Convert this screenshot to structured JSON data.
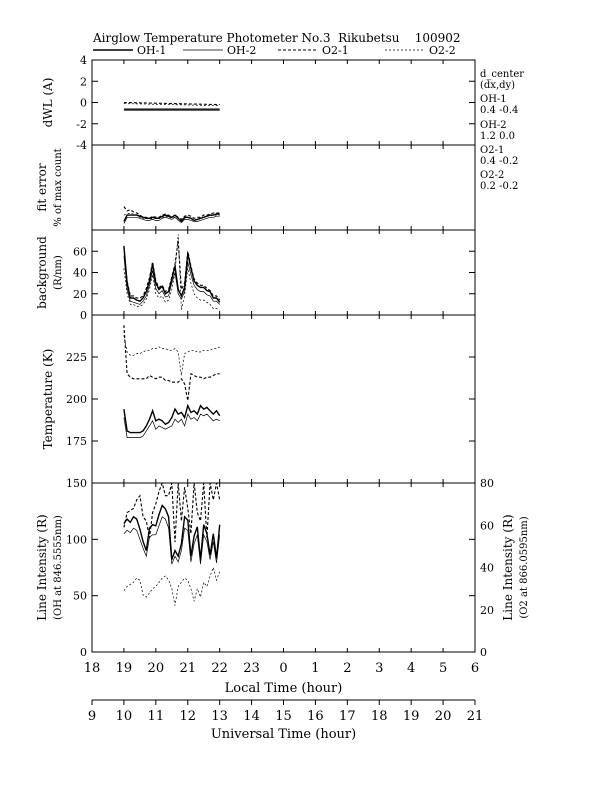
{
  "title": {
    "text": "Airglow Temperature Photometer No.3  Rikubetsu    100902"
  },
  "legend": [
    {
      "name": "OH-1",
      "style": "solid-thick"
    },
    {
      "name": "OH-2",
      "style": "solid-thin"
    },
    {
      "name": "O2-1",
      "style": "dashed-thick"
    },
    {
      "name": "O2-2",
      "style": "dashed-thin"
    }
  ],
  "side_notes": [
    "d_center",
    "(dx,dy)",
    "OH-1",
    "0.4  -0.4",
    "OH-2",
    "1.2   0.0",
    "O2-1",
    "0.4   -0.2",
    "O2-2",
    "0.2   -0.2"
  ],
  "x_axes": {
    "local": {
      "label": "Local Time (hour)",
      "ticks": [
        "18",
        "19",
        "20",
        "21",
        "22",
        "23",
        "0",
        "1",
        "2",
        "3",
        "4",
        "5",
        "6"
      ],
      "range": [
        18,
        30
      ]
    },
    "universal": {
      "label": "Universal Time (hour)",
      "ticks": [
        "9",
        "10",
        "11",
        "12",
        "13",
        "14",
        "15",
        "16",
        "17",
        "18",
        "19",
        "20",
        "21"
      ],
      "range": [
        9,
        21
      ]
    }
  },
  "chart_data": [
    {
      "type": "line",
      "panel": "dWL",
      "ylabel": "dWL (A)",
      "ylim": [
        -4,
        4
      ],
      "yticks": [
        "4",
        "2",
        "0",
        "-2",
        "-4"
      ],
      "x": [
        19.0,
        22.0
      ],
      "series": [
        {
          "name": "OH-1",
          "values": [
            -0.7,
            -0.7
          ]
        },
        {
          "name": "OH-2",
          "values": [
            -0.6,
            -0.6
          ]
        },
        {
          "name": "O2-1",
          "values": [
            0.0,
            -0.2
          ]
        },
        {
          "name": "O2-2",
          "values": [
            -0.1,
            -0.3
          ]
        }
      ]
    },
    {
      "type": "line",
      "panel": "fit error",
      "ylabel": [
        "fit error",
        "% of max count"
      ],
      "ylim": [
        0,
        4
      ],
      "yticks": [],
      "x": [
        19.0,
        19.1,
        19.2,
        19.3,
        19.4,
        19.5,
        19.6,
        19.7,
        19.8,
        19.9,
        20.0,
        20.1,
        20.2,
        20.3,
        20.4,
        20.5,
        20.6,
        20.7,
        20.8,
        20.9,
        21.0,
        21.1,
        21.2,
        21.3,
        21.4,
        21.5,
        21.6,
        21.7,
        21.8,
        21.9,
        22.0
      ],
      "series": [
        {
          "name": "OH-1",
          "values": [
            0.4,
            0.7,
            0.7,
            0.7,
            0.7,
            0.65,
            0.6,
            0.55,
            0.55,
            0.6,
            0.55,
            0.55,
            0.65,
            0.7,
            0.65,
            0.6,
            0.7,
            0.55,
            0.4,
            0.6,
            0.6,
            0.55,
            0.45,
            0.5,
            0.55,
            0.6,
            0.65,
            0.7,
            0.7,
            0.75,
            0.75
          ]
        },
        {
          "name": "OH-2",
          "values": [
            0.3,
            0.6,
            0.6,
            0.6,
            0.6,
            0.55,
            0.5,
            0.45,
            0.45,
            0.5,
            0.45,
            0.45,
            0.55,
            0.6,
            0.55,
            0.5,
            0.6,
            0.45,
            0.35,
            0.5,
            0.5,
            0.45,
            0.4,
            0.4,
            0.45,
            0.5,
            0.55,
            0.6,
            0.6,
            0.65,
            0.65
          ]
        },
        {
          "name": "O2-1",
          "values": [
            1.1,
            0.9,
            0.95,
            0.85,
            0.8,
            0.7,
            0.6,
            0.6,
            0.55,
            0.65,
            0.6,
            0.6,
            0.7,
            0.75,
            0.7,
            0.6,
            0.7,
            0.6,
            0.5,
            0.65,
            0.7,
            0.65,
            0.55,
            0.6,
            0.6,
            0.7,
            0.7,
            0.75,
            0.8,
            0.8,
            0.8
          ]
        },
        {
          "name": "O2-2",
          "values": [
            0.7,
            0.75,
            0.8,
            0.75,
            0.7,
            0.6,
            0.55,
            0.55,
            0.5,
            0.55,
            0.55,
            0.55,
            0.6,
            0.65,
            0.6,
            0.55,
            0.6,
            0.55,
            0.45,
            0.55,
            0.6,
            0.55,
            0.5,
            0.5,
            0.55,
            0.6,
            0.65,
            0.65,
            0.7,
            0.7,
            0.7
          ]
        }
      ]
    },
    {
      "type": "line",
      "panel": "background",
      "ylabel": [
        "background",
        "(R/nm)"
      ],
      "ylim": [
        0,
        80
      ],
      "yticks": [
        "60",
        "40",
        "20",
        "0"
      ],
      "x": [
        19.0,
        19.1,
        19.2,
        19.3,
        19.4,
        19.5,
        19.6,
        19.7,
        19.8,
        19.9,
        20.0,
        20.1,
        20.2,
        20.3,
        20.4,
        20.5,
        20.6,
        20.7,
        20.8,
        20.9,
        21.0,
        21.1,
        21.2,
        21.3,
        21.4,
        21.5,
        21.6,
        21.7,
        21.8,
        21.9,
        22.0
      ],
      "series": [
        {
          "name": "OH-1",
          "values": [
            65,
            30,
            16,
            16,
            14,
            13,
            16,
            22,
            32,
            48,
            30,
            24,
            27,
            20,
            22,
            34,
            46,
            24,
            18,
            26,
            58,
            44,
            32,
            28,
            26,
            26,
            23,
            22,
            16,
            16,
            12
          ]
        },
        {
          "name": "OH-2",
          "values": [
            56,
            24,
            13,
            12,
            11,
            10,
            13,
            18,
            28,
            42,
            25,
            20,
            23,
            17,
            18,
            30,
            40,
            20,
            15,
            22,
            50,
            38,
            28,
            24,
            22,
            22,
            19,
            18,
            13,
            13,
            10
          ]
        },
        {
          "name": "O2-1",
          "values": [
            64,
            32,
            18,
            18,
            16,
            16,
            18,
            25,
            35,
            50,
            32,
            26,
            28,
            22,
            24,
            36,
            48,
            70,
            24,
            30,
            60,
            46,
            34,
            30,
            28,
            28,
            25,
            23,
            18,
            18,
            14
          ]
        },
        {
          "name": "O2-2",
          "values": [
            44,
            20,
            10,
            10,
            8,
            8,
            10,
            15,
            24,
            38,
            20,
            16,
            18,
            12,
            14,
            24,
            40,
            76,
            5,
            18,
            44,
            30,
            20,
            16,
            14,
            14,
            12,
            10,
            6,
            6,
            5
          ]
        }
      ]
    },
    {
      "type": "line",
      "panel": "temperature",
      "ylabel": "Temperature (K)",
      "ylim": [
        150,
        250
      ],
      "yticks": [
        "225",
        "200",
        "175"
      ],
      "x": [
        19.0,
        19.1,
        19.2,
        19.3,
        19.4,
        19.5,
        19.6,
        19.7,
        19.8,
        19.9,
        20.0,
        20.1,
        20.2,
        20.3,
        20.4,
        20.5,
        20.6,
        20.7,
        20.8,
        20.9,
        21.0,
        21.1,
        21.2,
        21.3,
        21.4,
        21.5,
        21.6,
        21.7,
        21.8,
        21.9,
        22.0
      ],
      "series": [
        {
          "name": "OH-1",
          "values": [
            194,
            181,
            180,
            180,
            180,
            180,
            181,
            184,
            188,
            193,
            187,
            188,
            187,
            185,
            186,
            189,
            194,
            191,
            192,
            189,
            196,
            192,
            193,
            191,
            196,
            194,
            195,
            193,
            191,
            193,
            190
          ]
        },
        {
          "name": "OH-2",
          "values": [
            189,
            177,
            177,
            177,
            177,
            177,
            178,
            181,
            184,
            187,
            182,
            184,
            183,
            182,
            183,
            184,
            188,
            186,
            188,
            184,
            191,
            188,
            189,
            187,
            191,
            190,
            191,
            189,
            187,
            188,
            187
          ]
        },
        {
          "name": "O2-1",
          "values": [
            244,
            215,
            213,
            212,
            212,
            212,
            212,
            212,
            214,
            213,
            212,
            213,
            213,
            211,
            211,
            210,
            210,
            210,
            212,
            209,
            199,
            215,
            214,
            213,
            213,
            212,
            213,
            213,
            214,
            215,
            215
          ]
        },
        {
          "name": "O2-2",
          "values": [
            238,
            228,
            226,
            226,
            227,
            227,
            228,
            229,
            229,
            230,
            230,
            231,
            230,
            230,
            229,
            229,
            230,
            228,
            214,
            227,
            228,
            229,
            229,
            228,
            228,
            229,
            229,
            229,
            230,
            230,
            231
          ]
        }
      ]
    },
    {
      "type": "line",
      "panel": "line intensity",
      "ylabel": [
        "Line Intensity (R)",
        "(OH at 846.5555nm)"
      ],
      "y2label": [
        "Line Intensity (R)",
        "(O2 at 866.0595nm)"
      ],
      "ylim": [
        0,
        150
      ],
      "y2lim": [
        0,
        80
      ],
      "yticks": [
        "150",
        "100",
        "50",
        "0"
      ],
      "y2ticks": [
        "80",
        "60",
        "40",
        "20",
        "0"
      ],
      "x": [
        19.0,
        19.1,
        19.2,
        19.3,
        19.4,
        19.5,
        19.6,
        19.7,
        19.8,
        19.9,
        20.0,
        20.1,
        20.2,
        20.3,
        20.4,
        20.5,
        20.6,
        20.7,
        20.8,
        20.9,
        21.0,
        21.1,
        21.2,
        21.3,
        21.4,
        21.5,
        21.6,
        21.7,
        21.8,
        21.9,
        22.0
      ],
      "series": [
        {
          "name": "OH-1",
          "axis": "left",
          "values": [
            114,
            118,
            115,
            120,
            118,
            109,
            98,
            90,
            110,
            113,
            112,
            122,
            130,
            127,
            120,
            82,
            90,
            85,
            96,
            120,
            117,
            85,
            103,
            111,
            82,
            113,
            105,
            86,
            105,
            83,
            113
          ]
        },
        {
          "name": "OH-2",
          "axis": "left",
          "values": [
            105,
            108,
            106,
            110,
            108,
            100,
            92,
            85,
            102,
            104,
            104,
            112,
            120,
            118,
            110,
            78,
            85,
            80,
            90,
            110,
            108,
            80,
            96,
            104,
            78,
            104,
            98,
            82,
            98,
            79,
            104
          ]
        },
        {
          "name": "O2-1",
          "axis": "right",
          "values": [
            59,
            66,
            67,
            68,
            72,
            74,
            64,
            62,
            54,
            66,
            70,
            76,
            80,
            74,
            74,
            80,
            52,
            80,
            62,
            78,
            68,
            56,
            80,
            66,
            62,
            80,
            54,
            80,
            72,
            80,
            72
          ]
        },
        {
          "name": "O2-2",
          "axis": "right",
          "values": [
            29,
            31,
            32,
            33,
            35,
            34,
            27,
            26,
            28,
            30,
            31,
            33,
            35,
            36,
            34,
            30,
            22,
            31,
            33,
            35,
            34,
            30,
            24,
            30,
            26,
            33,
            31,
            36,
            40,
            34,
            38
          ]
        }
      ]
    }
  ]
}
